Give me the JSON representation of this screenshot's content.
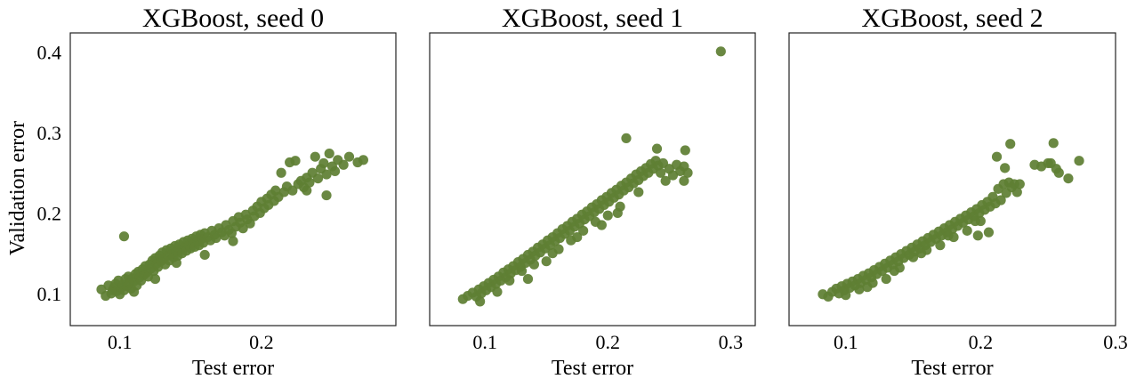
{
  "chart_data": [
    {
      "type": "scatter",
      "title": "XGBoost, seed 0",
      "xlabel": "Test error",
      "ylabel": "Validation error",
      "xlim": [
        0.065,
        0.295
      ],
      "ylim": [
        0.06,
        0.424
      ],
      "xticks": [
        "0.1",
        "0.2"
      ],
      "yticks": [
        "0.1",
        "0.2",
        "0.3",
        "0.4"
      ],
      "grid": false,
      "color": "#5f7f34",
      "points": [
        [
          0.087,
          0.105
        ],
        [
          0.09,
          0.097
        ],
        [
          0.092,
          0.11
        ],
        [
          0.094,
          0.1
        ],
        [
          0.095,
          0.104
        ],
        [
          0.096,
          0.108
        ],
        [
          0.097,
          0.112
        ],
        [
          0.098,
          0.103
        ],
        [
          0.099,
          0.116
        ],
        [
          0.1,
          0.099
        ],
        [
          0.101,
          0.107
        ],
        [
          0.102,
          0.111
        ],
        [
          0.103,
          0.104
        ],
        [
          0.104,
          0.118
        ],
        [
          0.105,
          0.109
        ],
        [
          0.106,
          0.121
        ],
        [
          0.107,
          0.113
        ],
        [
          0.108,
          0.106
        ],
        [
          0.109,
          0.119
        ],
        [
          0.11,
          0.115
        ],
        [
          0.111,
          0.124
        ],
        [
          0.112,
          0.11
        ],
        [
          0.113,
          0.127
        ],
        [
          0.114,
          0.12
        ],
        [
          0.115,
          0.116
        ],
        [
          0.116,
          0.13
        ],
        [
          0.117,
          0.123
        ],
        [
          0.118,
          0.134
        ],
        [
          0.119,
          0.126
        ],
        [
          0.12,
          0.121
        ],
        [
          0.121,
          0.136
        ],
        [
          0.122,
          0.131
        ],
        [
          0.123,
          0.141
        ],
        [
          0.124,
          0.128
        ],
        [
          0.125,
          0.144
        ],
        [
          0.126,
          0.137
        ],
        [
          0.127,
          0.133
        ],
        [
          0.128,
          0.147
        ],
        [
          0.129,
          0.14
        ],
        [
          0.13,
          0.151
        ],
        [
          0.131,
          0.143
        ],
        [
          0.132,
          0.136
        ],
        [
          0.133,
          0.154
        ],
        [
          0.134,
          0.147
        ],
        [
          0.135,
          0.141
        ],
        [
          0.136,
          0.156
        ],
        [
          0.137,
          0.149
        ],
        [
          0.138,
          0.145
        ],
        [
          0.139,
          0.159
        ],
        [
          0.14,
          0.152
        ],
        [
          0.141,
          0.147
        ],
        [
          0.142,
          0.161
        ],
        [
          0.143,
          0.155
        ],
        [
          0.144,
          0.15
        ],
        [
          0.145,
          0.164
        ],
        [
          0.146,
          0.158
        ],
        [
          0.147,
          0.153
        ],
        [
          0.148,
          0.166
        ],
        [
          0.149,
          0.16
        ],
        [
          0.15,
          0.156
        ],
        [
          0.151,
          0.168
        ],
        [
          0.152,
          0.162
        ],
        [
          0.153,
          0.158
        ],
        [
          0.154,
          0.171
        ],
        [
          0.155,
          0.165
        ],
        [
          0.156,
          0.16
        ],
        [
          0.157,
          0.173
        ],
        [
          0.158,
          0.168
        ],
        [
          0.159,
          0.163
        ],
        [
          0.16,
          0.175
        ],
        [
          0.162,
          0.17
        ],
        [
          0.164,
          0.166
        ],
        [
          0.165,
          0.178
        ],
        [
          0.167,
          0.173
        ],
        [
          0.168,
          0.169
        ],
        [
          0.17,
          0.181
        ],
        [
          0.172,
          0.176
        ],
        [
          0.174,
          0.172
        ],
        [
          0.175,
          0.185
        ],
        [
          0.177,
          0.179
        ],
        [
          0.179,
          0.175
        ],
        [
          0.18,
          0.19
        ],
        [
          0.182,
          0.183
        ],
        [
          0.184,
          0.195
        ],
        [
          0.185,
          0.188
        ],
        [
          0.187,
          0.181
        ],
        [
          0.189,
          0.198
        ],
        [
          0.19,
          0.192
        ],
        [
          0.192,
          0.187
        ],
        [
          0.194,
          0.203
        ],
        [
          0.195,
          0.196
        ],
        [
          0.197,
          0.208
        ],
        [
          0.199,
          0.2
        ],
        [
          0.2,
          0.214
        ],
        [
          0.202,
          0.206
        ],
        [
          0.204,
          0.218
        ],
        [
          0.205,
          0.21
        ],
        [
          0.207,
          0.223
        ],
        [
          0.209,
          0.215
        ],
        [
          0.21,
          0.228
        ],
        [
          0.212,
          0.22
        ],
        [
          0.214,
          0.25
        ],
        [
          0.216,
          0.226
        ],
        [
          0.218,
          0.233
        ],
        [
          0.22,
          0.263
        ],
        [
          0.222,
          0.228
        ],
        [
          0.224,
          0.265
        ],
        [
          0.226,
          0.236
        ],
        [
          0.228,
          0.24
        ],
        [
          0.23,
          0.232
        ],
        [
          0.232,
          0.244
        ],
        [
          0.234,
          0.238
        ],
        [
          0.236,
          0.25
        ],
        [
          0.238,
          0.27
        ],
        [
          0.24,
          0.243
        ],
        [
          0.242,
          0.255
        ],
        [
          0.244,
          0.262
        ],
        [
          0.246,
          0.248
        ],
        [
          0.248,
          0.274
        ],
        [
          0.25,
          0.258
        ],
        [
          0.252,
          0.252
        ],
        [
          0.254,
          0.266
        ],
        [
          0.258,
          0.26
        ],
        [
          0.262,
          0.27
        ],
        [
          0.268,
          0.263
        ],
        [
          0.272,
          0.266
        ],
        [
          0.246,
          0.222
        ],
        [
          0.232,
          0.228
        ],
        [
          0.103,
          0.171
        ],
        [
          0.18,
          0.165
        ],
        [
          0.16,
          0.148
        ],
        [
          0.14,
          0.138
        ],
        [
          0.125,
          0.118
        ],
        [
          0.11,
          0.102
        ]
      ]
    },
    {
      "type": "scatter",
      "title": "XGBoost, seed 1",
      "xlabel": "Test error",
      "ylabel": "",
      "xlim": [
        0.055,
        0.32
      ],
      "ylim": [
        0.06,
        0.424
      ],
      "xticks": [
        "0.1",
        "0.2",
        "0.3"
      ],
      "yticks": [],
      "grid": false,
      "color": "#5f7f34",
      "points": [
        [
          0.082,
          0.093
        ],
        [
          0.086,
          0.097
        ],
        [
          0.09,
          0.101
        ],
        [
          0.093,
          0.096
        ],
        [
          0.095,
          0.105
        ],
        [
          0.097,
          0.1
        ],
        [
          0.099,
          0.109
        ],
        [
          0.101,
          0.104
        ],
        [
          0.103,
          0.113
        ],
        [
          0.105,
          0.108
        ],
        [
          0.107,
          0.117
        ],
        [
          0.109,
          0.112
        ],
        [
          0.111,
          0.121
        ],
        [
          0.113,
          0.116
        ],
        [
          0.115,
          0.126
        ],
        [
          0.117,
          0.12
        ],
        [
          0.119,
          0.13
        ],
        [
          0.121,
          0.125
        ],
        [
          0.123,
          0.134
        ],
        [
          0.125,
          0.129
        ],
        [
          0.127,
          0.139
        ],
        [
          0.129,
          0.133
        ],
        [
          0.131,
          0.143
        ],
        [
          0.133,
          0.138
        ],
        [
          0.135,
          0.148
        ],
        [
          0.137,
          0.142
        ],
        [
          0.139,
          0.152
        ],
        [
          0.141,
          0.147
        ],
        [
          0.143,
          0.157
        ],
        [
          0.145,
          0.151
        ],
        [
          0.147,
          0.161
        ],
        [
          0.149,
          0.156
        ],
        [
          0.151,
          0.166
        ],
        [
          0.153,
          0.16
        ],
        [
          0.155,
          0.17
        ],
        [
          0.157,
          0.165
        ],
        [
          0.159,
          0.175
        ],
        [
          0.161,
          0.169
        ],
        [
          0.163,
          0.18
        ],
        [
          0.165,
          0.174
        ],
        [
          0.167,
          0.184
        ],
        [
          0.169,
          0.178
        ],
        [
          0.171,
          0.189
        ],
        [
          0.173,
          0.183
        ],
        [
          0.175,
          0.193
        ],
        [
          0.177,
          0.187
        ],
        [
          0.179,
          0.198
        ],
        [
          0.181,
          0.192
        ],
        [
          0.183,
          0.202
        ],
        [
          0.185,
          0.196
        ],
        [
          0.187,
          0.207
        ],
        [
          0.189,
          0.201
        ],
        [
          0.191,
          0.211
        ],
        [
          0.193,
          0.205
        ],
        [
          0.195,
          0.216
        ],
        [
          0.197,
          0.21
        ],
        [
          0.199,
          0.22
        ],
        [
          0.201,
          0.214
        ],
        [
          0.203,
          0.225
        ],
        [
          0.205,
          0.219
        ],
        [
          0.207,
          0.229
        ],
        [
          0.209,
          0.223
        ],
        [
          0.211,
          0.234
        ],
        [
          0.213,
          0.228
        ],
        [
          0.215,
          0.238
        ],
        [
          0.217,
          0.232
        ],
        [
          0.219,
          0.243
        ],
        [
          0.221,
          0.237
        ],
        [
          0.223,
          0.248
        ],
        [
          0.225,
          0.241
        ],
        [
          0.227,
          0.252
        ],
        [
          0.229,
          0.246
        ],
        [
          0.231,
          0.256
        ],
        [
          0.233,
          0.25
        ],
        [
          0.235,
          0.261
        ],
        [
          0.237,
          0.255
        ],
        [
          0.239,
          0.265
        ],
        [
          0.241,
          0.259
        ],
        [
          0.243,
          0.25
        ],
        [
          0.245,
          0.262
        ],
        [
          0.247,
          0.24
        ],
        [
          0.25,
          0.255
        ],
        [
          0.253,
          0.247
        ],
        [
          0.256,
          0.26
        ],
        [
          0.259,
          0.252
        ],
        [
          0.262,
          0.258
        ],
        [
          0.265,
          0.25
        ],
        [
          0.24,
          0.28
        ],
        [
          0.263,
          0.278
        ],
        [
          0.215,
          0.293
        ],
        [
          0.262,
          0.24
        ],
        [
          0.292,
          0.401
        ],
        [
          0.12,
          0.116
        ],
        [
          0.14,
          0.136
        ],
        [
          0.16,
          0.155
        ],
        [
          0.18,
          0.178
        ],
        [
          0.2,
          0.197
        ],
        [
          0.11,
          0.102
        ],
        [
          0.13,
          0.128
        ],
        [
          0.15,
          0.14
        ],
        [
          0.17,
          0.166
        ],
        [
          0.19,
          0.189
        ],
        [
          0.21,
          0.208
        ],
        [
          0.225,
          0.226
        ],
        [
          0.096,
          0.09
        ],
        [
          0.135,
          0.118
        ],
        [
          0.155,
          0.15
        ],
        [
          0.175,
          0.17
        ],
        [
          0.195,
          0.185
        ],
        [
          0.208,
          0.2
        ]
      ]
    },
    {
      "type": "scatter",
      "title": "XGBoost, seed 2",
      "xlabel": "Test error",
      "ylabel": "",
      "xlim": [
        0.058,
        0.3
      ],
      "ylim": [
        0.06,
        0.424
      ],
      "xticks": [
        "0.1",
        "0.2",
        "0.3"
      ],
      "yticks": [],
      "grid": false,
      "color": "#5f7f34",
      "points": [
        [
          0.083,
          0.099
        ],
        [
          0.087,
          0.096
        ],
        [
          0.09,
          0.102
        ],
        [
          0.093,
          0.106
        ],
        [
          0.095,
          0.1
        ],
        [
          0.097,
          0.109
        ],
        [
          0.099,
          0.104
        ],
        [
          0.101,
          0.112
        ],
        [
          0.103,
          0.107
        ],
        [
          0.105,
          0.115
        ],
        [
          0.107,
          0.11
        ],
        [
          0.109,
          0.118
        ],
        [
          0.111,
          0.113
        ],
        [
          0.113,
          0.122
        ],
        [
          0.115,
          0.117
        ],
        [
          0.117,
          0.125
        ],
        [
          0.119,
          0.12
        ],
        [
          0.121,
          0.129
        ],
        [
          0.123,
          0.124
        ],
        [
          0.125,
          0.133
        ],
        [
          0.127,
          0.128
        ],
        [
          0.129,
          0.137
        ],
        [
          0.131,
          0.132
        ],
        [
          0.133,
          0.141
        ],
        [
          0.135,
          0.136
        ],
        [
          0.137,
          0.145
        ],
        [
          0.139,
          0.14
        ],
        [
          0.141,
          0.149
        ],
        [
          0.143,
          0.144
        ],
        [
          0.145,
          0.153
        ],
        [
          0.147,
          0.148
        ],
        [
          0.149,
          0.157
        ],
        [
          0.151,
          0.152
        ],
        [
          0.153,
          0.161
        ],
        [
          0.155,
          0.156
        ],
        [
          0.157,
          0.165
        ],
        [
          0.159,
          0.16
        ],
        [
          0.161,
          0.169
        ],
        [
          0.163,
          0.164
        ],
        [
          0.165,
          0.173
        ],
        [
          0.167,
          0.168
        ],
        [
          0.169,
          0.177
        ],
        [
          0.171,
          0.172
        ],
        [
          0.173,
          0.181
        ],
        [
          0.175,
          0.176
        ],
        [
          0.177,
          0.185
        ],
        [
          0.179,
          0.18
        ],
        [
          0.181,
          0.189
        ],
        [
          0.183,
          0.184
        ],
        [
          0.185,
          0.193
        ],
        [
          0.187,
          0.188
        ],
        [
          0.189,
          0.197
        ],
        [
          0.191,
          0.192
        ],
        [
          0.193,
          0.201
        ],
        [
          0.195,
          0.196
        ],
        [
          0.197,
          0.205
        ],
        [
          0.199,
          0.2
        ],
        [
          0.201,
          0.21
        ],
        [
          0.203,
          0.204
        ],
        [
          0.205,
          0.214
        ],
        [
          0.207,
          0.208
        ],
        [
          0.209,
          0.22
        ],
        [
          0.211,
          0.212
        ],
        [
          0.213,
          0.23
        ],
        [
          0.215,
          0.216
        ],
        [
          0.217,
          0.236
        ],
        [
          0.219,
          0.225
        ],
        [
          0.221,
          0.238
        ],
        [
          0.223,
          0.232
        ],
        [
          0.225,
          0.236
        ],
        [
          0.227,
          0.226
        ],
        [
          0.229,
          0.236
        ],
        [
          0.222,
          0.286
        ],
        [
          0.212,
          0.27
        ],
        [
          0.218,
          0.256
        ],
        [
          0.24,
          0.26
        ],
        [
          0.245,
          0.258
        ],
        [
          0.25,
          0.262
        ],
        [
          0.254,
          0.287
        ],
        [
          0.256,
          0.255
        ],
        [
          0.258,
          0.25
        ],
        [
          0.265,
          0.243
        ],
        [
          0.273,
          0.265
        ],
        [
          0.252,
          0.262
        ],
        [
          0.2,
          0.19
        ],
        [
          0.206,
          0.176
        ],
        [
          0.198,
          0.172
        ],
        [
          0.11,
          0.105
        ],
        [
          0.13,
          0.118
        ],
        [
          0.15,
          0.145
        ],
        [
          0.17,
          0.16
        ],
        [
          0.19,
          0.178
        ],
        [
          0.12,
          0.113
        ],
        [
          0.14,
          0.132
        ],
        [
          0.16,
          0.154
        ],
        [
          0.18,
          0.17
        ],
        [
          0.1,
          0.098
        ],
        [
          0.116,
          0.108
        ],
        [
          0.136,
          0.128
        ],
        [
          0.156,
          0.15
        ],
        [
          0.176,
          0.172
        ],
        [
          0.196,
          0.19
        ]
      ]
    }
  ]
}
